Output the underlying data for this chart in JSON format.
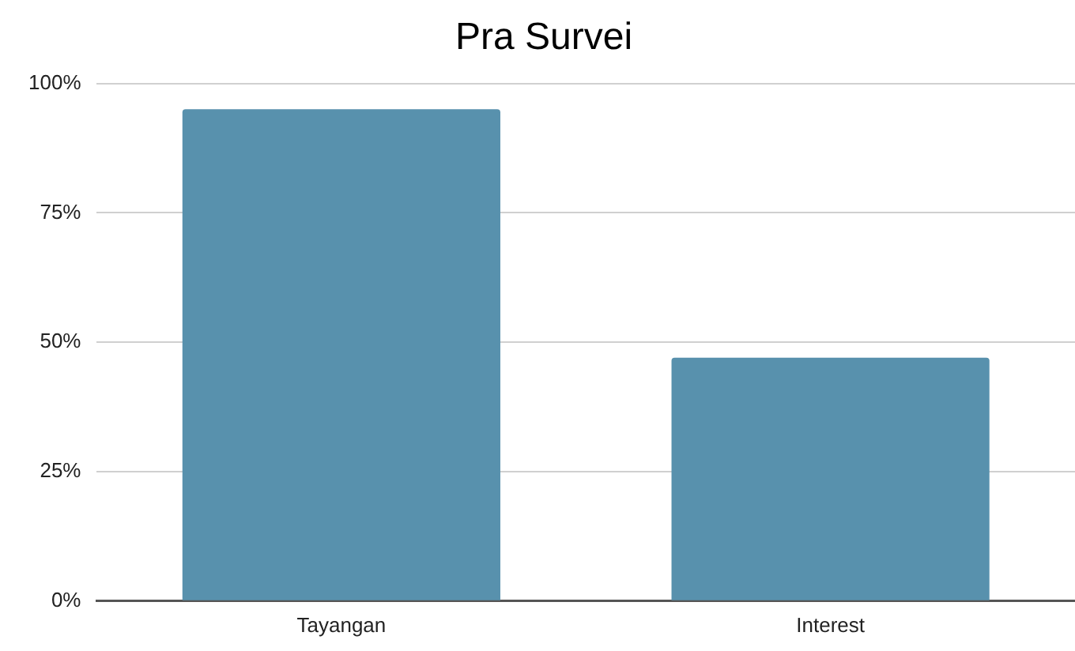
{
  "chart_data": {
    "type": "bar",
    "title": "Pra Survei",
    "categories": [
      "Tayangan",
      "Interest"
    ],
    "values": [
      95,
      47
    ],
    "color": "#5891ad",
    "ylim": [
      0,
      100
    ],
    "yticks": [
      {
        "value": 0,
        "label": "0%"
      },
      {
        "value": 25,
        "label": "25%"
      },
      {
        "value": 50,
        "label": "50%"
      },
      {
        "value": 75,
        "label": "75%"
      },
      {
        "value": 100,
        "label": "100%"
      }
    ],
    "grid": "y",
    "legend": false
  }
}
